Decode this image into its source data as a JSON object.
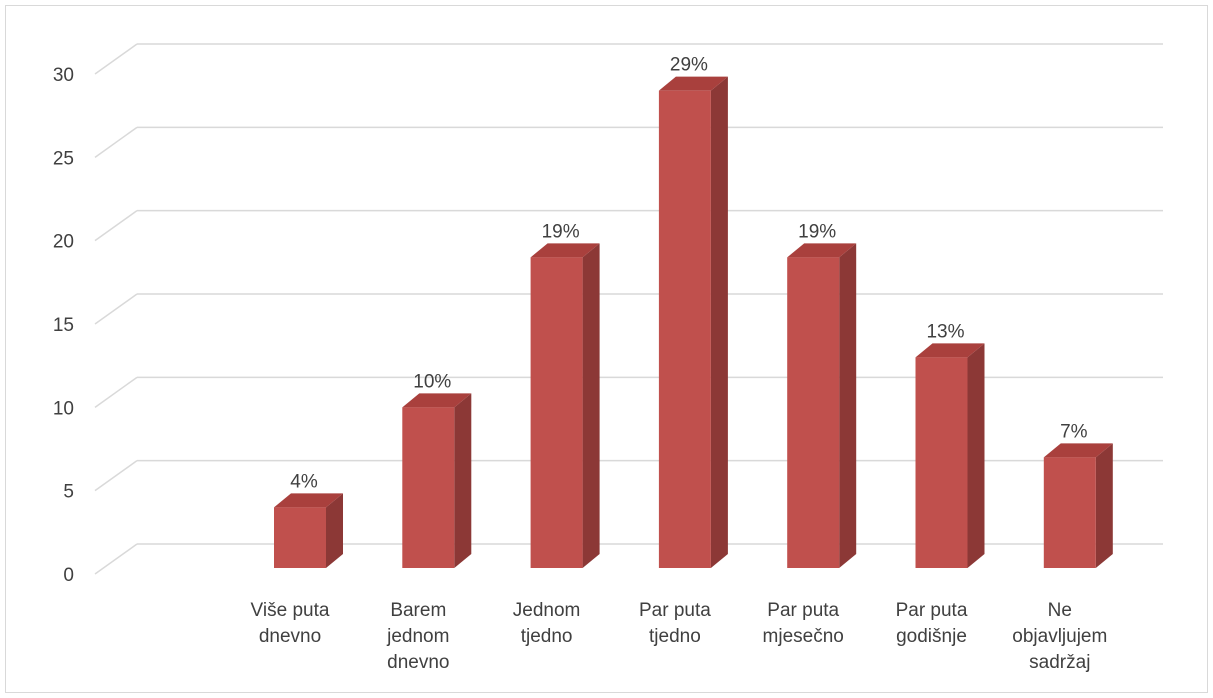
{
  "chart_data": {
    "type": "bar",
    "title": "",
    "xlabel": "",
    "ylabel": "",
    "categories": [
      [
        "Više puta",
        "dnevno"
      ],
      [
        "Barem",
        "jednom",
        "dnevno"
      ],
      [
        "Jednom",
        "tjedno"
      ],
      [
        "Par puta",
        "tjedno"
      ],
      [
        "Par puta",
        "mjesečno"
      ],
      [
        "Par puta",
        "godišnje"
      ],
      [
        "Ne",
        "objavljujem",
        "sadržaj"
      ]
    ],
    "values": [
      4,
      10,
      19,
      29,
      19,
      13,
      7
    ],
    "data_labels": [
      "4%",
      "10%",
      "19%",
      "29%",
      "19%",
      "13%",
      "7%"
    ],
    "ylim": [
      0,
      30
    ],
    "y_ticks": [
      0,
      5,
      10,
      15,
      20,
      25,
      30
    ],
    "y_tick_labels": [
      "0",
      "5",
      "10",
      "15",
      "20",
      "25",
      "30"
    ],
    "grid": true,
    "legend": "none",
    "style": "3d-column",
    "colors": {
      "bar_front": "#c0504d",
      "bar_side": "#8c3836",
      "bar_top": "#a9403d",
      "gridline": "#d9d9d9",
      "text": "#404040"
    }
  }
}
